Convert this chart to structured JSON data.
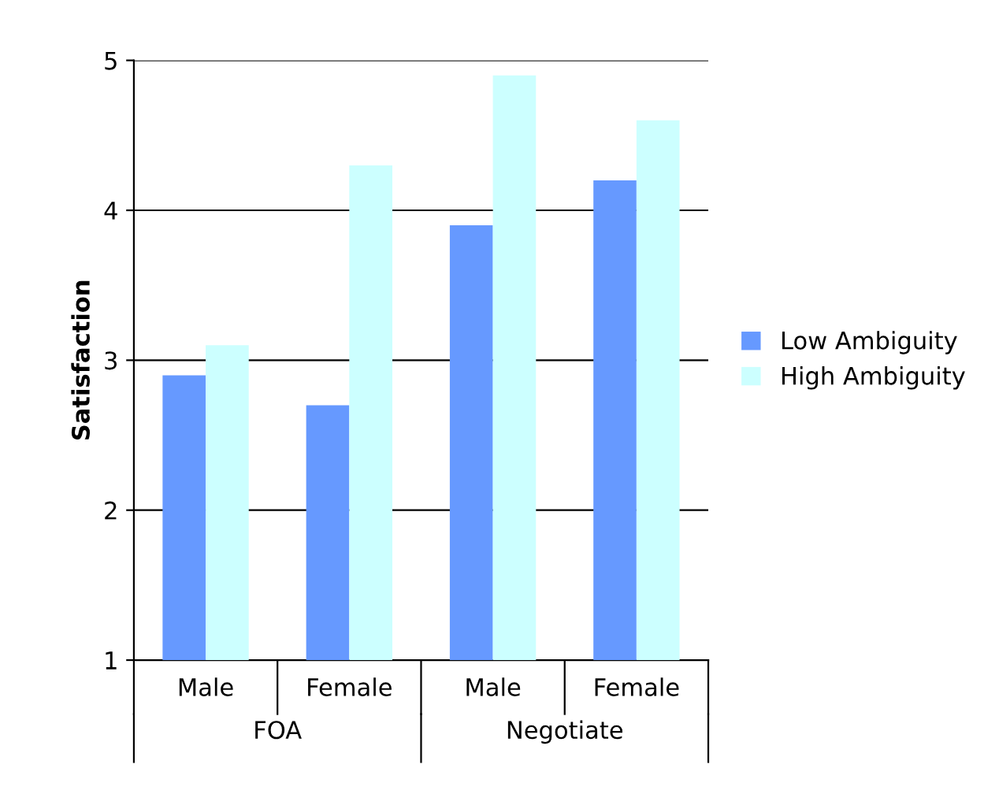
{
  "chart_data": {
    "type": "bar",
    "ylabel": "Satisfaction",
    "categories": [
      "Male",
      "Female",
      "Male",
      "Female"
    ],
    "series": [
      {
        "name": "Low Ambiguity",
        "color": "#6699ff",
        "values": [
          2.9,
          2.7,
          3.9,
          4.2
        ]
      },
      {
        "name": "High Ambiguity",
        "color": "#ccffff",
        "values": [
          3.1,
          4.3,
          4.9,
          4.6
        ]
      }
    ],
    "annotations": [
      "FOA",
      "Negotiate"
    ],
    "ylim": [
      1,
      5
    ],
    "yticks": [
      1,
      2,
      3,
      4,
      5
    ],
    "grid": "y",
    "legend": "right"
  }
}
